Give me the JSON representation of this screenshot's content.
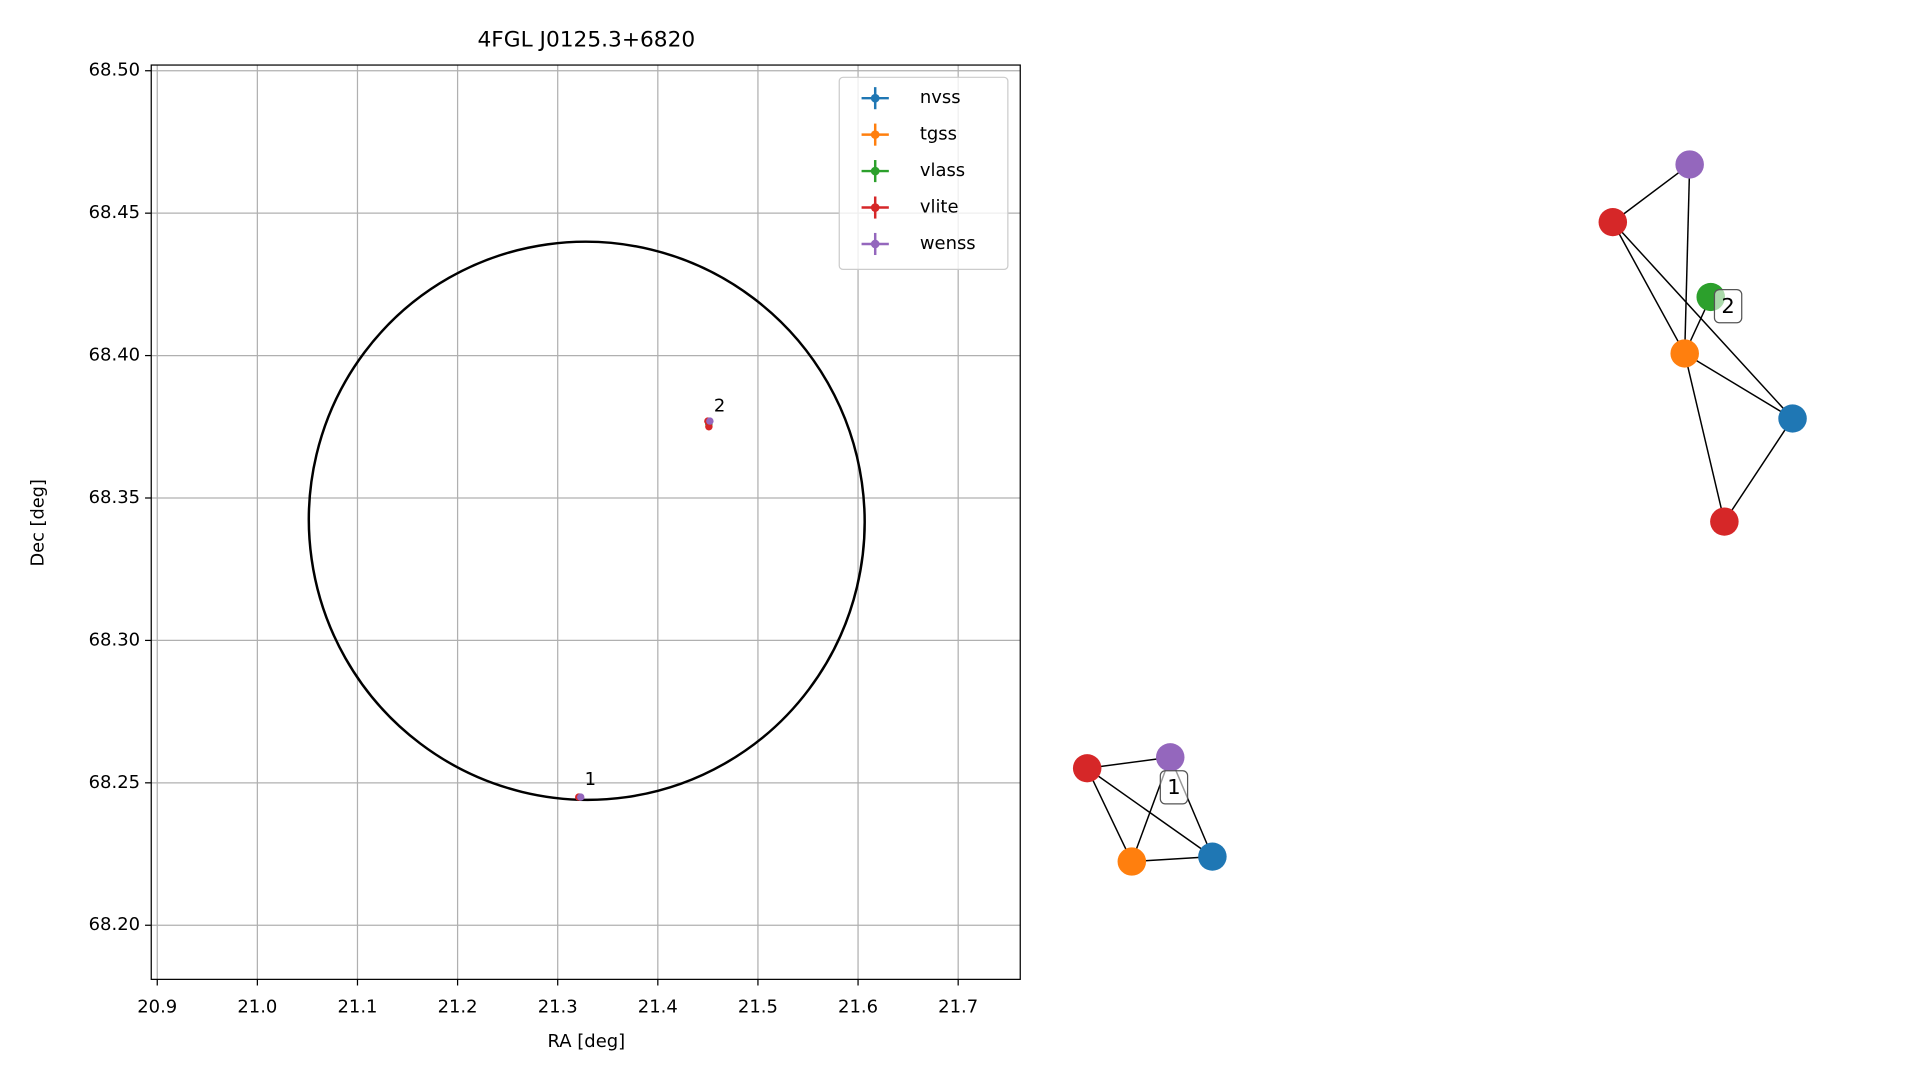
{
  "chart_data": {
    "type": "scatter",
    "title": "4FGL J0125.3+6820",
    "x_label": "RA [deg]",
    "y_label": "Dec [deg]",
    "xlim": [
      20.894,
      21.762
    ],
    "ylim": [
      68.181,
      68.502
    ],
    "xticks": [
      20.9,
      {
        "value": 21.0,
        "label": "21.0"
      },
      21.1,
      21.2,
      21.3,
      21.4,
      21.5,
      21.6,
      21.7
    ],
    "yticks": [
      {
        "value": 68.2,
        "label": "68.20"
      },
      68.25,
      {
        "value": 68.3,
        "label": "68.30"
      },
      68.35,
      {
        "value": 68.4,
        "label": "68.40"
      },
      68.45,
      {
        "value": 68.5,
        "label": "68.50"
      }
    ],
    "grid": true,
    "legend": "upper right",
    "series": [
      {
        "name": "nvss",
        "color": "#1f77b4",
        "x": [
          21.322,
          21.451
        ],
        "y": [
          68.245,
          68.376
        ]
      },
      {
        "name": "tgss",
        "color": "#ff7f0e",
        "x": [
          21.322,
          21.451
        ],
        "y": [
          68.245,
          68.376
        ]
      },
      {
        "name": "vlass",
        "color": "#2ca02c",
        "x": [
          null,
          21.451
        ],
        "y": [
          null,
          68.376
        ]
      },
      {
        "name": "vlite",
        "color": "#d62728",
        "x": [
          21.321,
          21.45,
          21.451
        ],
        "y": [
          68.245,
          68.377,
          68.375
        ]
      },
      {
        "name": "wenss",
        "color": "#9467bd",
        "x": [
          21.323,
          21.452
        ],
        "y": [
          68.245,
          68.377
        ]
      }
    ],
    "ellipse": {
      "center": [
        21.329,
        68.342
      ],
      "width": 0.555,
      "height": 0.196
    },
    "annotations": [
      {
        "text": "1",
        "x": 21.322,
        "y": 68.245
      },
      {
        "text": "2",
        "x": 21.451,
        "y": 68.376
      }
    ]
  },
  "network_labels": [
    "1",
    "2"
  ]
}
